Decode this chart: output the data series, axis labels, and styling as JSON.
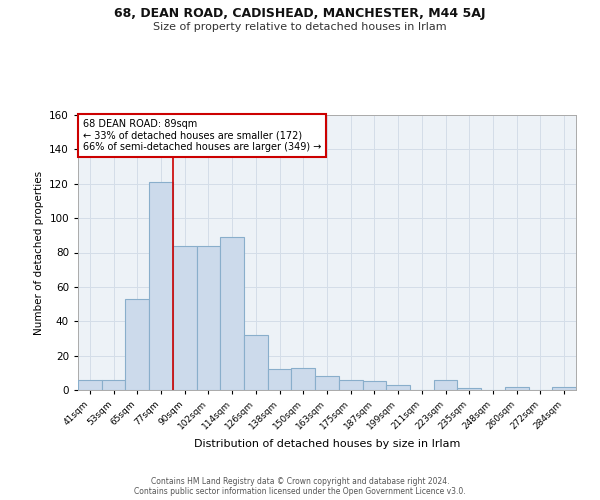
{
  "title_line1": "68, DEAN ROAD, CADISHEAD, MANCHESTER, M44 5AJ",
  "title_line2": "Size of property relative to detached houses in Irlam",
  "xlabel": "Distribution of detached houses by size in Irlam",
  "ylabel": "Number of detached properties",
  "footer_line1": "Contains HM Land Registry data © Crown copyright and database right 2024.",
  "footer_line2": "Contains public sector information licensed under the Open Government Licence v3.0.",
  "bin_labels": [
    "41sqm",
    "53sqm",
    "65sqm",
    "77sqm",
    "90sqm",
    "102sqm",
    "114sqm",
    "126sqm",
    "138sqm",
    "150sqm",
    "163sqm",
    "175sqm",
    "187sqm",
    "199sqm",
    "211sqm",
    "223sqm",
    "235sqm",
    "248sqm",
    "260sqm",
    "272sqm",
    "284sqm"
  ],
  "bar_heights": [
    6,
    6,
    53,
    121,
    84,
    84,
    89,
    32,
    12,
    13,
    8,
    6,
    5,
    3,
    0,
    6,
    1,
    0,
    2,
    0,
    2
  ],
  "bar_color": "#ccdaeb",
  "bar_edgecolor": "#89aecb",
  "bar_linewidth": 0.8,
  "ylim": [
    0,
    160
  ],
  "yticks": [
    0,
    20,
    40,
    60,
    80,
    100,
    120,
    140,
    160
  ],
  "annotation_line1": "68 DEAN ROAD: 89sqm",
  "annotation_line2": "← 33% of detached houses are smaller (172)",
  "annotation_line3": "66% of semi-detached houses are larger (349) →",
  "annotation_box_color": "#ffffff",
  "annotation_box_edgecolor": "#cc0000",
  "vline_color": "#cc0000",
  "vline_linewidth": 1.2,
  "grid_color": "#d4dde8",
  "background_color": "#edf2f7",
  "property_bar_index": 4,
  "bar_width": 1.0
}
